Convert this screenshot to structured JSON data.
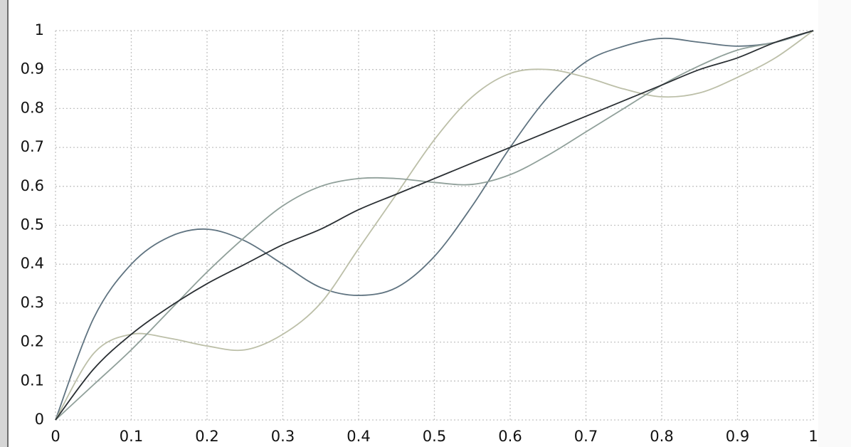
{
  "chart_data": {
    "type": "line",
    "x": [
      0,
      0.05,
      0.1,
      0.15,
      0.2,
      0.25,
      0.3,
      0.35,
      0.4,
      0.45,
      0.5,
      0.55,
      0.6,
      0.65,
      0.7,
      0.75,
      0.8,
      0.85,
      0.9,
      0.95,
      1
    ],
    "series": [
      {
        "color": "#5f7380",
        "values": [
          0,
          0.26,
          0.4,
          0.47,
          0.49,
          0.46,
          0.4,
          0.34,
          0.32,
          0.34,
          0.42,
          0.55,
          0.7,
          0.83,
          0.92,
          0.96,
          0.98,
          0.97,
          0.96,
          0.97,
          1
        ]
      },
      {
        "color": "#bcbfa8",
        "values": [
          0,
          0.17,
          0.22,
          0.21,
          0.19,
          0.18,
          0.22,
          0.3,
          0.44,
          0.58,
          0.72,
          0.83,
          0.89,
          0.9,
          0.88,
          0.85,
          0.83,
          0.84,
          0.88,
          0.93,
          1
        ]
      },
      {
        "color": "#90a09a",
        "values": [
          0,
          0.09,
          0.18,
          0.28,
          0.38,
          0.47,
          0.55,
          0.6,
          0.62,
          0.62,
          0.61,
          0.605,
          0.63,
          0.68,
          0.74,
          0.8,
          0.86,
          0.91,
          0.95,
          0.97,
          1
        ]
      },
      {
        "color": "#2a2f33",
        "values": [
          0,
          0.13,
          0.22,
          0.29,
          0.35,
          0.4,
          0.45,
          0.49,
          0.54,
          0.58,
          0.62,
          0.66,
          0.7,
          0.74,
          0.78,
          0.82,
          0.86,
          0.9,
          0.93,
          0.97,
          1
        ]
      }
    ],
    "xlim": [
      0,
      1
    ],
    "ylim": [
      0,
      1
    ],
    "xticks": [
      0,
      0.1,
      0.2,
      0.3,
      0.4,
      0.5,
      0.6,
      0.7,
      0.8,
      0.9,
      1
    ],
    "yticks": [
      0,
      0.1,
      0.2,
      0.3,
      0.4,
      0.5,
      0.6,
      0.7,
      0.8,
      0.9,
      1
    ],
    "grid": true
  }
}
